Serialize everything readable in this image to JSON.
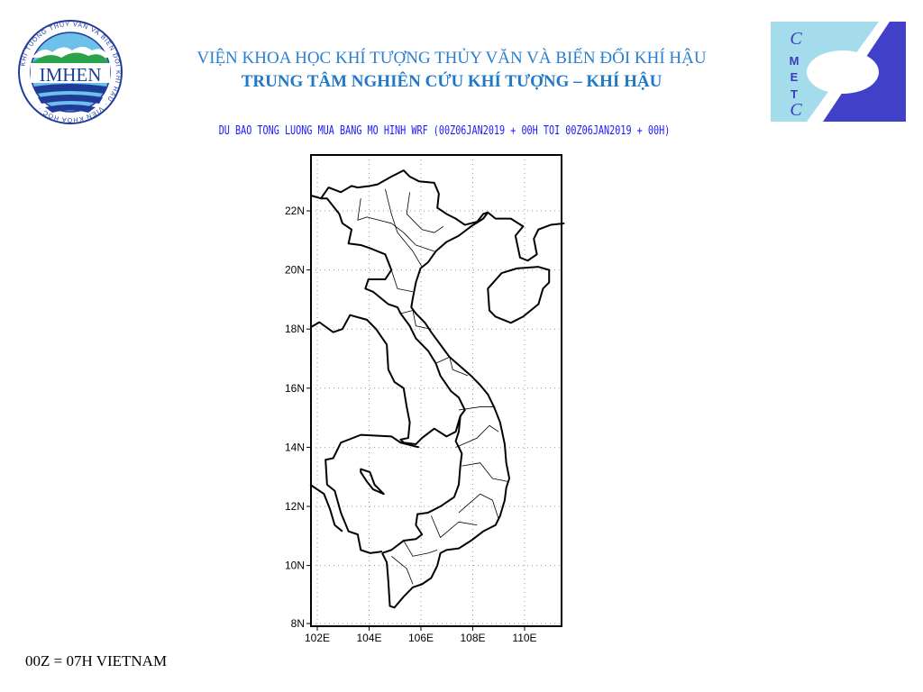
{
  "header": {
    "title_line1": "VIỆN KHOA HỌC KHÍ TƯỢNG THỦY VĂN VÀ BIẾN ĐỔI KHÍ HẬU",
    "title_line2": "TRUNG TÂM NGHIÊN CỨU KHÍ TƯỢNG – KHÍ HẬU",
    "left_logo": {
      "text": "IMHEN",
      "ring_text": "VIEN KHOA HOC KHI TUONG THUY VAN VA BIEN DOI KHI HAU"
    },
    "right_logo": {
      "letters": [
        "C",
        "M",
        "E",
        "T",
        "C"
      ]
    }
  },
  "map": {
    "subtitle": "DU BAO TONG LUONG MUA BANG MO HINH WRF (00Z06JAN2019 + 00H TOI 00Z06JAN2019 + 00H)",
    "lon_range": [
      101.75,
      111.4
    ],
    "lat_range": [
      7.9,
      23.9
    ],
    "grid": "dotted",
    "x_ticks": [
      "102E",
      "104E",
      "106E",
      "108E",
      "110E"
    ],
    "x_tick_values": [
      102,
      104,
      106,
      108,
      110
    ],
    "y_ticks": [
      "22N",
      "20N",
      "18N",
      "16N",
      "14N",
      "12N",
      "10N",
      "8N"
    ],
    "y_tick_values": [
      22,
      20,
      18,
      16,
      14,
      12,
      10,
      8
    ]
  },
  "footer": {
    "note": "00Z = 07H VIETNAM"
  },
  "colors": {
    "title": "#2a7fd0",
    "subtitle": "#1a1aff",
    "logo_light": "#a4dcec",
    "logo_dark": "#4040c8"
  }
}
